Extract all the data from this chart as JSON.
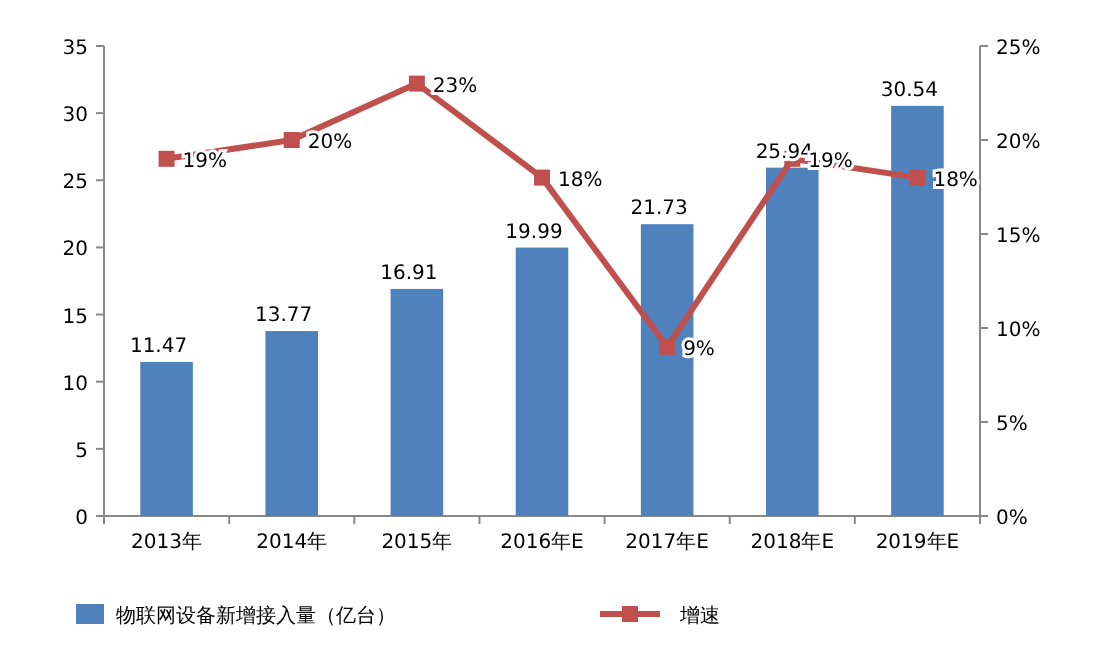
{
  "chart_data": {
    "type": "bar",
    "categories": [
      "2013年",
      "2014年",
      "2015年",
      "2016年E",
      "2017年E",
      "2018年E",
      "2019年E"
    ],
    "series": [
      {
        "name": "物联网设备新增接入量（亿台）",
        "color": "#4f81bd",
        "values": [
          11.47,
          13.77,
          16.91,
          19.99,
          21.73,
          25.94,
          30.54
        ]
      },
      {
        "name": "增速",
        "type": "line",
        "axis": "y2",
        "color": "#c0504d",
        "values": [
          19,
          20,
          23,
          18,
          9,
          19,
          18
        ],
        "value_labels": [
          "19%",
          "20%",
          "23%",
          "18%",
          "9%",
          "19%",
          "18%"
        ]
      }
    ],
    "ylim": [
      0,
      35
    ],
    "yticks": [
      0,
      5,
      10,
      15,
      20,
      25,
      30,
      35
    ],
    "y2lim": [
      0,
      25
    ],
    "y2ticks": [
      {
        "value": 0,
        "label": "0%"
      },
      {
        "value": 5,
        "label": "5%"
      },
      {
        "value": 10,
        "label": "10%"
      },
      {
        "value": 15,
        "label": "15%"
      },
      {
        "value": 20,
        "label": "20%"
      },
      {
        "value": 25,
        "label": "25%"
      }
    ],
    "data_labels": true,
    "legend": "bottom",
    "marker": "square",
    "line_style": "solid"
  }
}
